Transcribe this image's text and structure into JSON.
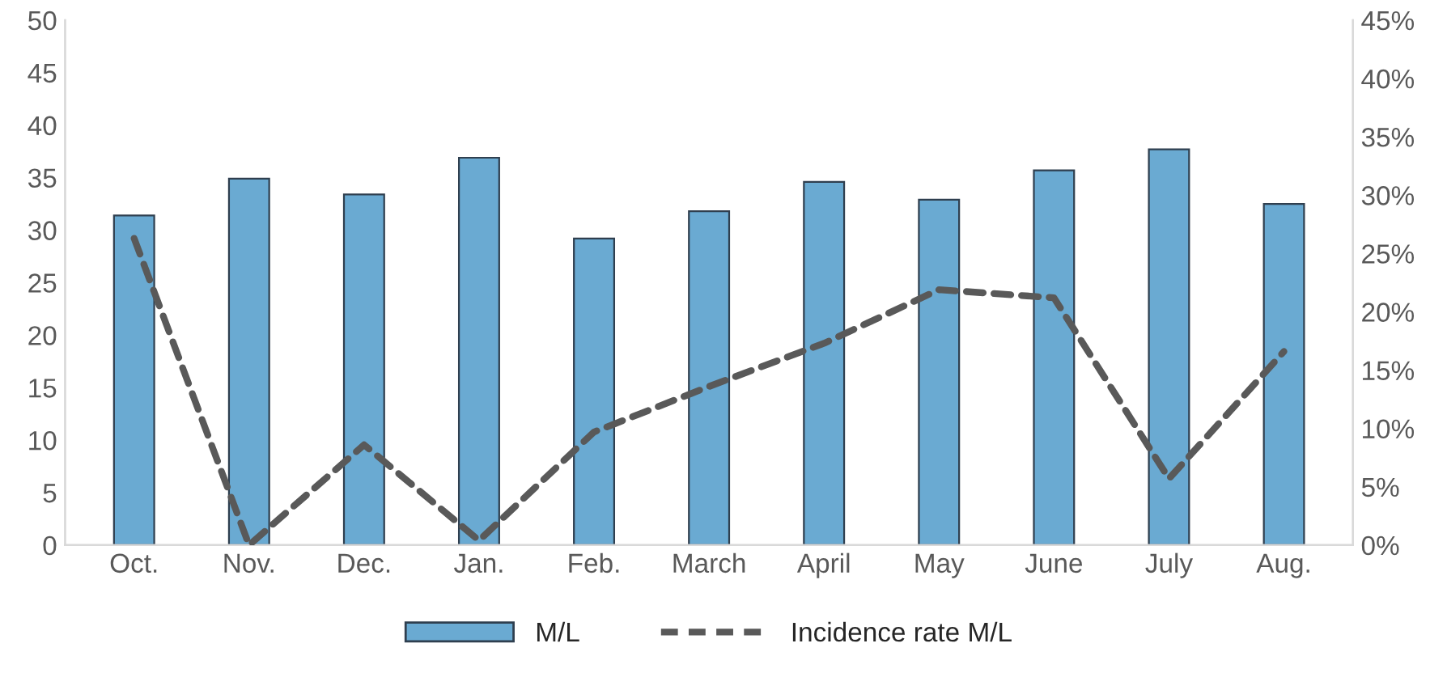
{
  "chart_data": {
    "type": "bar",
    "categories": [
      "Oct.",
      "Nov.",
      "Dec.",
      "Jan.",
      "Feb.",
      "March",
      "April",
      "May",
      "June",
      "July",
      "Aug."
    ],
    "series": [
      {
        "name": "M/L",
        "color": "#6aaad2",
        "values": [
          31.4,
          34.9,
          33.4,
          36.9,
          29.2,
          31.8,
          34.6,
          32.9,
          35.7,
          37.7,
          32.5
        ]
      },
      {
        "name": "Incidence rate M/L",
        "type": "line",
        "axis": "y2",
        "color": "#595959",
        "line_style": "dashed",
        "values": [
          26.3,
          0,
          8.6,
          0.4,
          9.7,
          13.6,
          17.3,
          21.9,
          21.2,
          5.7,
          16.6
        ]
      }
    ],
    "ylim": [
      0,
      50
    ],
    "yticks": [
      0,
      5,
      10,
      15,
      20,
      25,
      30,
      35,
      40,
      45,
      50
    ],
    "y2lim": [
      0,
      45
    ],
    "y2ticks": [
      {
        "value": 0,
        "label": "0%"
      },
      {
        "value": 5,
        "label": "5%"
      },
      {
        "value": 10,
        "label": "10%"
      },
      {
        "value": 15,
        "label": "15%"
      },
      {
        "value": 20,
        "label": "20%"
      },
      {
        "value": 25,
        "label": "25%"
      },
      {
        "value": 30,
        "label": "30%"
      },
      {
        "value": 35,
        "label": "35%"
      },
      {
        "value": 40,
        "label": "40%"
      },
      {
        "value": 45,
        "label": "45%"
      }
    ],
    "grid": false,
    "legend": "bottom"
  }
}
